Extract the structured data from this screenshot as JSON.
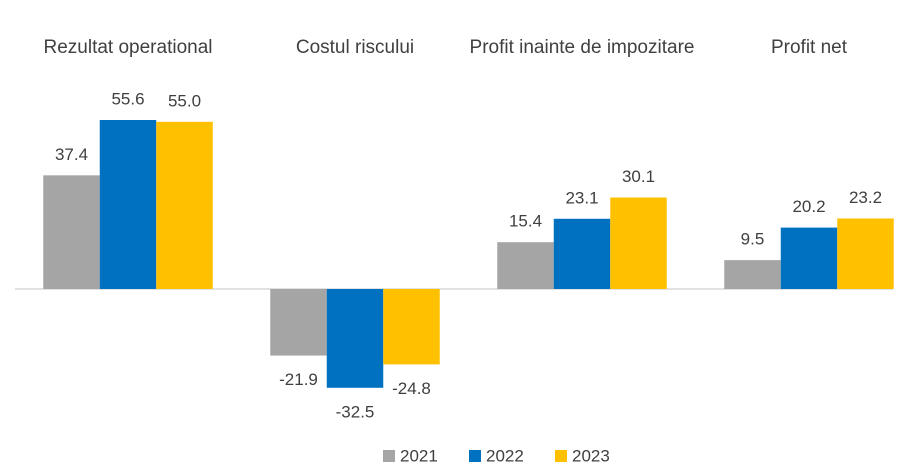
{
  "chart_data": {
    "type": "bar",
    "categories": [
      "Rezultat operational",
      "Costul riscului",
      "Profit inainte de impozitare",
      "Profit net"
    ],
    "series": [
      {
        "name": "2021",
        "color": "#a5a5a5",
        "values": [
          37.4,
          -21.9,
          15.4,
          9.5
        ]
      },
      {
        "name": "2022",
        "color": "#0070c0",
        "values": [
          55.6,
          -32.5,
          23.1,
          20.2
        ]
      },
      {
        "name": "2023",
        "color": "#ffc000",
        "values": [
          55.0,
          -24.8,
          30.1,
          23.2
        ],
        "value_labels": [
          "55.0",
          "-24.8",
          "30.1",
          "23.2"
        ]
      }
    ],
    "legend": "bottom"
  }
}
